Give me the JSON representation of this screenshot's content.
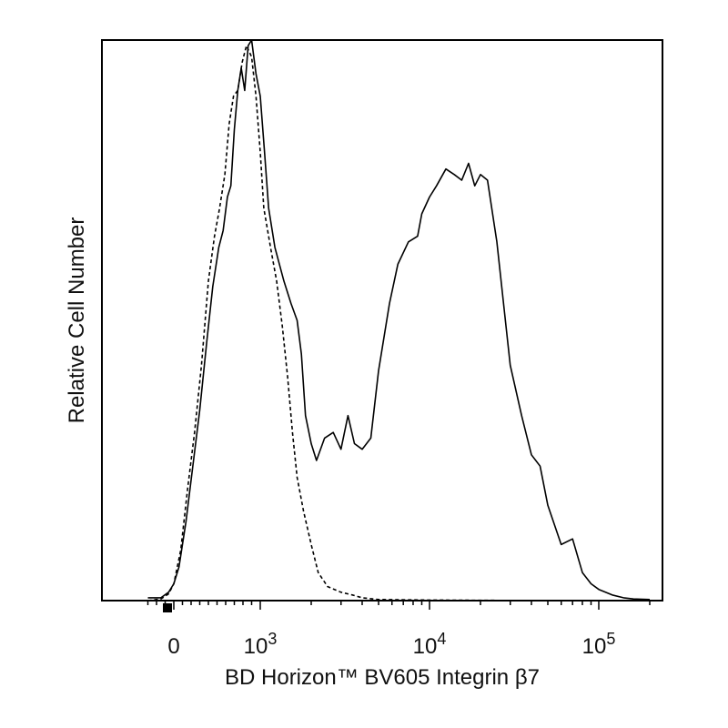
{
  "chart_data": {
    "type": "line",
    "xlabel": "BD Horizon™ BV605 Integrin β7",
    "ylabel": "Relative Cell Number",
    "x_scale": "biexponential",
    "xlim": [
      -300,
      250000
    ],
    "ylim": [
      0,
      100
    ],
    "x_tick_labels": [
      {
        "value": 0,
        "base": "0",
        "exp": ""
      },
      {
        "value": 1000,
        "base": "10",
        "exp": "3"
      },
      {
        "value": 10000,
        "base": "10",
        "exp": "4"
      },
      {
        "value": 100000,
        "base": "10",
        "exp": "5"
      }
    ],
    "grid": false,
    "legend": "none",
    "series": [
      {
        "style": "solid",
        "color": "#000000",
        "points": [
          [
            -300,
            0.5
          ],
          [
            -150,
            0.5
          ],
          [
            -60,
            1.5
          ],
          [
            0,
            3
          ],
          [
            60,
            6
          ],
          [
            140,
            14
          ],
          [
            220,
            24
          ],
          [
            300,
            34
          ],
          [
            380,
            46
          ],
          [
            450,
            56
          ],
          [
            520,
            63
          ],
          [
            570,
            66
          ],
          [
            620,
            72
          ],
          [
            660,
            74
          ],
          [
            700,
            84
          ],
          [
            740,
            91
          ],
          [
            780,
            95
          ],
          [
            820,
            91
          ],
          [
            860,
            99
          ],
          [
            900,
            100
          ],
          [
            950,
            94
          ],
          [
            1000,
            90
          ],
          [
            1060,
            80
          ],
          [
            1120,
            70
          ],
          [
            1220,
            63
          ],
          [
            1380,
            57
          ],
          [
            1520,
            53
          ],
          [
            1650,
            50
          ],
          [
            1750,
            44
          ],
          [
            1850,
            33
          ],
          [
            2000,
            28
          ],
          [
            2150,
            25
          ],
          [
            2400,
            29
          ],
          [
            2700,
            30
          ],
          [
            3000,
            27
          ],
          [
            3300,
            33
          ],
          [
            3600,
            28
          ],
          [
            4000,
            27
          ],
          [
            4500,
            29
          ],
          [
            5000,
            41
          ],
          [
            5800,
            53
          ],
          [
            6500,
            60
          ],
          [
            7500,
            64
          ],
          [
            8500,
            65
          ],
          [
            9000,
            69
          ],
          [
            10000,
            72
          ],
          [
            11000,
            74
          ],
          [
            12500,
            77
          ],
          [
            14000,
            76
          ],
          [
            15500,
            75
          ],
          [
            17000,
            78
          ],
          [
            18500,
            74
          ],
          [
            20000,
            76
          ],
          [
            22000,
            75
          ],
          [
            25000,
            64
          ],
          [
            30000,
            42
          ],
          [
            35000,
            33
          ],
          [
            40000,
            26
          ],
          [
            45000,
            24
          ],
          [
            50000,
            17
          ],
          [
            60000,
            10
          ],
          [
            70000,
            11
          ],
          [
            80000,
            5
          ],
          [
            90000,
            3
          ],
          [
            100000,
            2
          ],
          [
            120000,
            1
          ],
          [
            140000,
            0.5
          ],
          [
            160000,
            0.3
          ],
          [
            200000,
            0.2
          ]
        ]
      },
      {
        "style": "dashed",
        "color": "#000000",
        "points": [
          [
            -300,
            0
          ],
          [
            -150,
            0.3
          ],
          [
            -60,
            1.2
          ],
          [
            0,
            3
          ],
          [
            80,
            9
          ],
          [
            160,
            20
          ],
          [
            240,
            30
          ],
          [
            320,
            42
          ],
          [
            400,
            57
          ],
          [
            470,
            65
          ],
          [
            530,
            70
          ],
          [
            590,
            76
          ],
          [
            640,
            85
          ],
          [
            690,
            90
          ],
          [
            740,
            91
          ],
          [
            790,
            96
          ],
          [
            840,
            99
          ],
          [
            900,
            97
          ],
          [
            950,
            90
          ],
          [
            1000,
            80
          ],
          [
            1050,
            70
          ],
          [
            1150,
            63
          ],
          [
            1250,
            57
          ],
          [
            1350,
            49
          ],
          [
            1450,
            40
          ],
          [
            1550,
            30
          ],
          [
            1650,
            22
          ],
          [
            1800,
            16
          ],
          [
            2000,
            10
          ],
          [
            2200,
            5
          ],
          [
            2500,
            2.5
          ],
          [
            3000,
            1.5
          ],
          [
            3500,
            1
          ],
          [
            4000,
            0.5
          ],
          [
            5000,
            0.2
          ],
          [
            10000,
            0.1
          ],
          [
            50000,
            0
          ],
          [
            200000,
            0
          ]
        ]
      }
    ]
  }
}
